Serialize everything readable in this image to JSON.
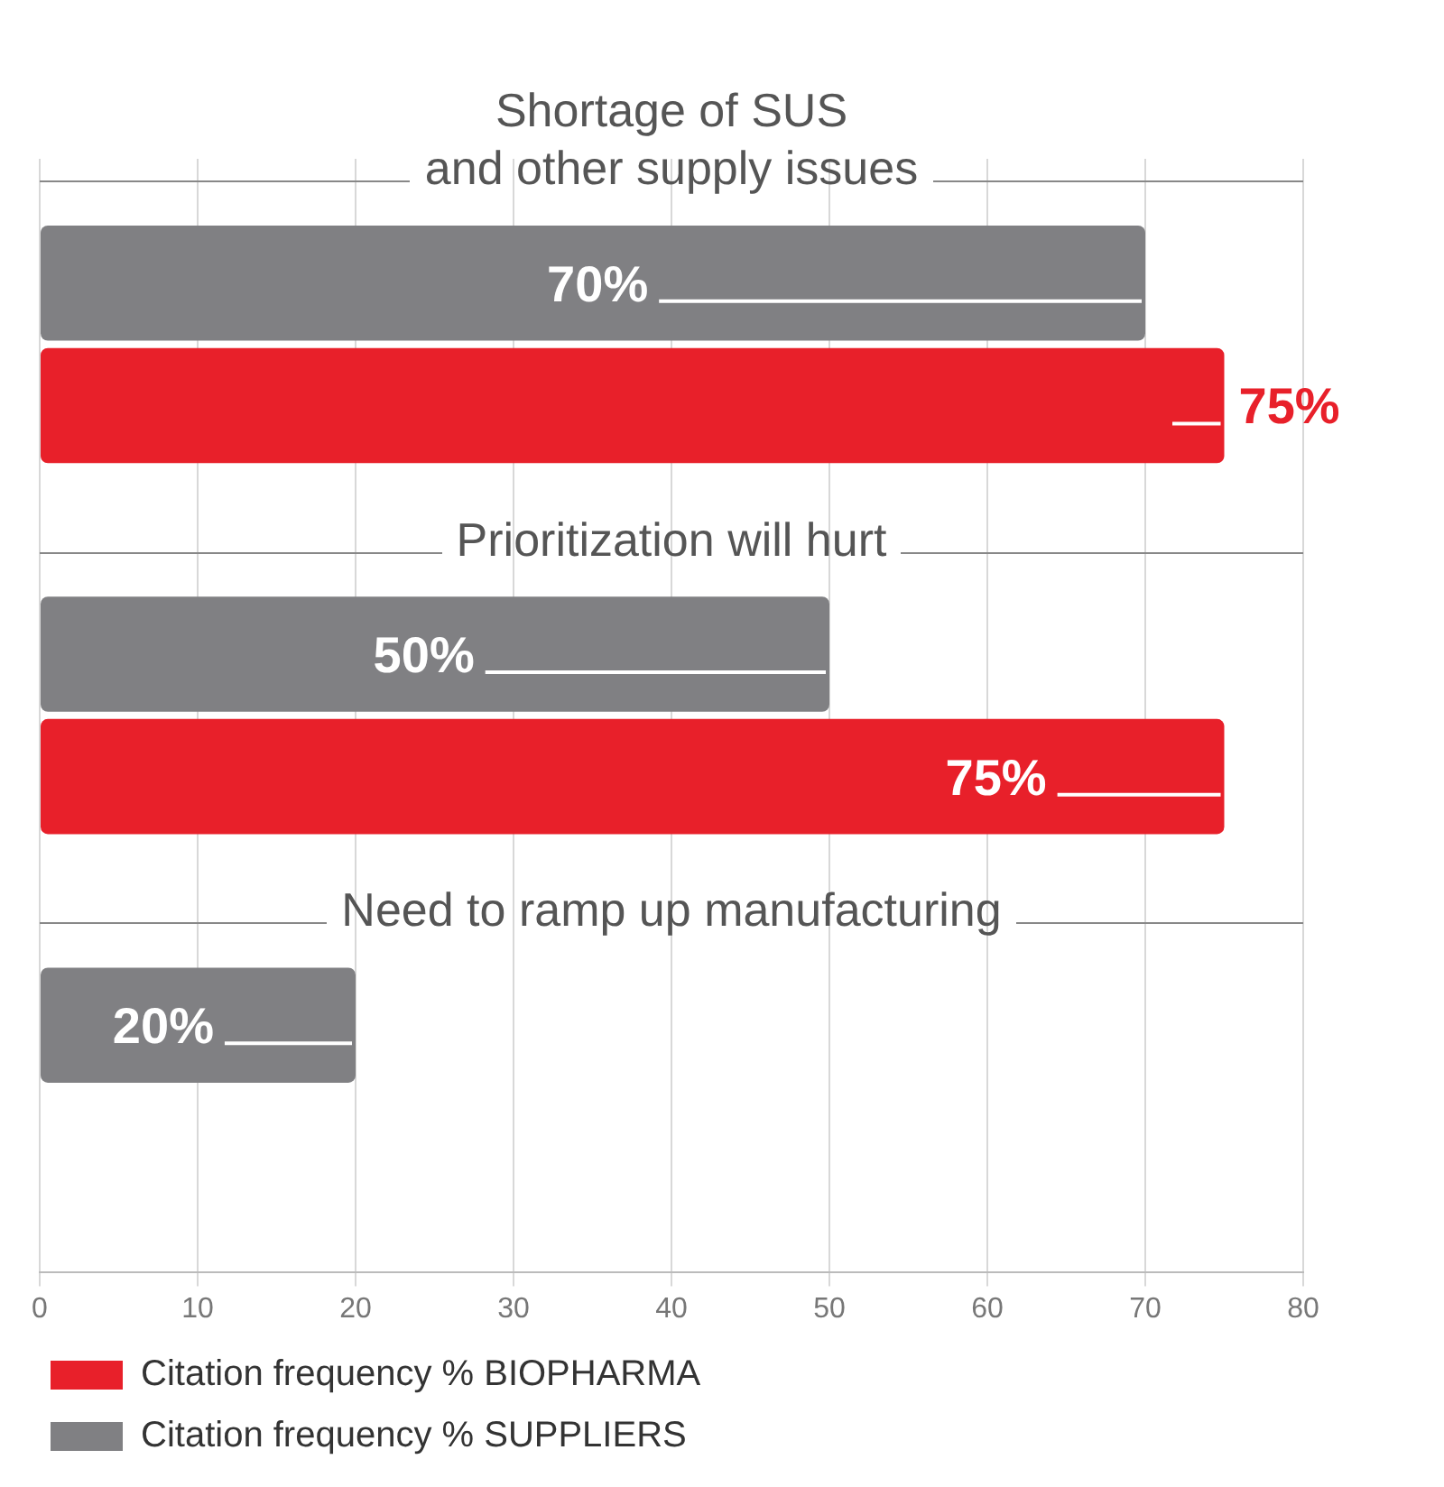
{
  "chart_data": {
    "type": "bar",
    "orientation": "horizontal",
    "categories": [
      "Shortage of SUS\nand other supply issues",
      "Prioritization will hurt",
      "Need to ramp up manufacturing"
    ],
    "series": [
      {
        "name": "Citation frequency % BIOPHARMA",
        "color": "#e8202a",
        "values": [
          75,
          75,
          null
        ],
        "value_labels": [
          "75%",
          "75%",
          null
        ]
      },
      {
        "name": "Citation frequency % SUPPLIERS",
        "color": "#808083",
        "values": [
          70,
          50,
          20
        ],
        "value_labels": [
          "70%",
          "50%",
          "20%"
        ]
      }
    ],
    "xlim": [
      0,
      80
    ],
    "xticks": [
      0,
      10,
      20,
      30,
      40,
      50,
      60,
      70,
      80
    ],
    "grid": "x",
    "legend": "bottom left"
  }
}
